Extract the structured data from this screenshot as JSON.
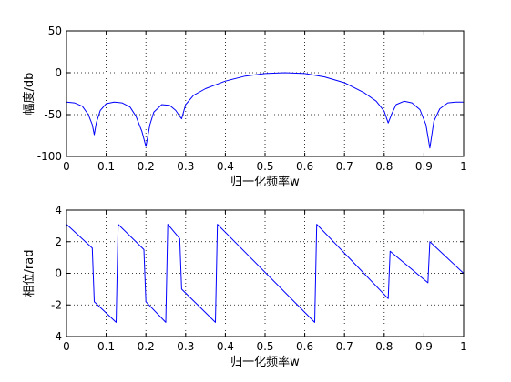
{
  "chart_data": [
    {
      "type": "line",
      "xlabel": "归一化频率w",
      "ylabel": "幅度/db",
      "xlim": [
        0,
        1
      ],
      "ylim": [
        -100,
        50
      ],
      "xticks": [
        "0",
        "0.1",
        "0.2",
        "0.3",
        "0.4",
        "0.5",
        "0.6",
        "0.7",
        "0.8",
        "0.9",
        "1"
      ],
      "yticks": [
        "50",
        "0",
        "-50",
        "-100"
      ],
      "grid": true,
      "line_color": "#0000ff",
      "series": [
        {
          "x": [
            0,
            0.02,
            0.04,
            0.055,
            0.065,
            0.07,
            0.075,
            0.085,
            0.1,
            0.12,
            0.14,
            0.16,
            0.175,
            0.19,
            0.2,
            0.21,
            0.22,
            0.24,
            0.26,
            0.275,
            0.285,
            0.29,
            0.3,
            0.32,
            0.35,
            0.4,
            0.45,
            0.5,
            0.55,
            0.6,
            0.65,
            0.7,
            0.75,
            0.78,
            0.8,
            0.81,
            0.82,
            0.83,
            0.85,
            0.87,
            0.89,
            0.905,
            0.915,
            0.925,
            0.94,
            0.96,
            0.98,
            1.0
          ],
          "y": [
            -35,
            -36,
            -40,
            -50,
            -62,
            -74,
            -60,
            -45,
            -37,
            -35,
            -36,
            -41,
            -52,
            -70,
            -88,
            -62,
            -47,
            -38,
            -39,
            -45,
            -52,
            -55,
            -38,
            -27,
            -19,
            -10,
            -4,
            -1,
            0,
            -1,
            -5,
            -12,
            -24,
            -34,
            -46,
            -60,
            -48,
            -38,
            -34,
            -36,
            -44,
            -62,
            -90,
            -58,
            -43,
            -36,
            -35,
            -35
          ]
        }
      ]
    },
    {
      "type": "line",
      "xlabel": "归一化频率w",
      "ylabel": "相位/rad",
      "xlim": [
        0,
        1
      ],
      "ylim": [
        -4,
        4
      ],
      "xticks": [
        "0",
        "0.1",
        "0.2",
        "0.3",
        "0.4",
        "0.5",
        "0.6",
        "0.7",
        "0.8",
        "0.9",
        "1"
      ],
      "yticks": [
        "4",
        "2",
        "0",
        "-2",
        "-4"
      ],
      "grid": true,
      "line_color": "#0000ff",
      "series": [
        {
          "x": [
            0,
            0.065,
            0.07,
            0.125,
            0.13,
            0.195,
            0.2,
            0.25,
            0.255,
            0.285,
            0.29,
            0.375,
            0.38,
            0.625,
            0.63,
            0.81,
            0.815,
            0.91,
            0.915,
            1.0
          ],
          "y": [
            3.1,
            1.6,
            -1.8,
            -3.1,
            3.1,
            1.5,
            -1.8,
            -3.1,
            3.1,
            2.2,
            -1.0,
            -3.1,
            3.1,
            -3.1,
            3.1,
            -1.6,
            1.4,
            -0.6,
            2.0,
            0.0
          ]
        }
      ]
    }
  ]
}
